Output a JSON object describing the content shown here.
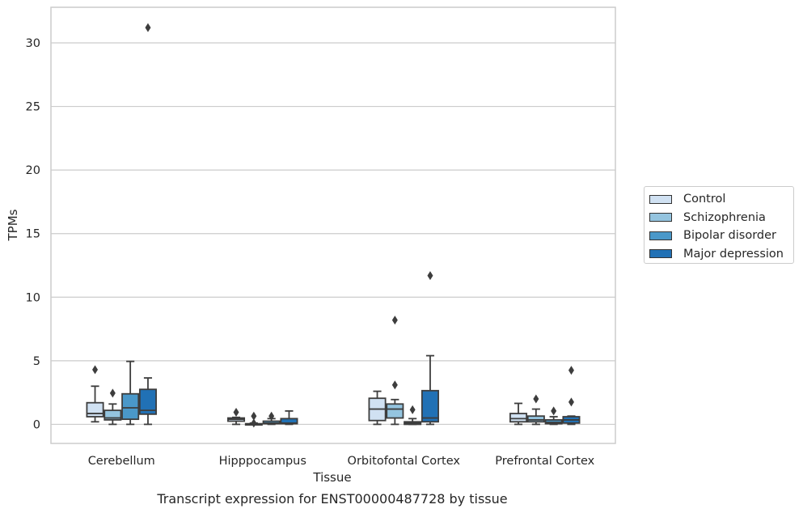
{
  "chart_data": {
    "type": "box",
    "title": "Transcript expression for ENST00000487728 by tissue",
    "xlabel": "Tissue",
    "ylabel": "TPMs",
    "ylim": [
      -1.5,
      32.8
    ],
    "yticks": [
      0,
      5,
      10,
      15,
      20,
      25,
      30
    ],
    "categories": [
      "Cerebellum",
      "Hipppocampus",
      "Orbitofontal Cortex",
      "Prefrontal Cortex"
    ],
    "grid": "horizontal",
    "legend_position": "right",
    "series": [
      {
        "name": "Control",
        "color": "#d0e1f2",
        "boxes": [
          {
            "whislo": 0.2,
            "q1": 0.6,
            "med": 0.85,
            "q3": 1.7,
            "whishi": 3.0,
            "fliers": [
              4.3
            ]
          },
          {
            "whislo": 0.0,
            "q1": 0.25,
            "med": 0.4,
            "q3": 0.5,
            "whishi": 0.55,
            "fliers": [
              0.95
            ]
          },
          {
            "whislo": 0.0,
            "q1": 0.3,
            "med": 1.2,
            "q3": 2.05,
            "whishi": 2.6,
            "fliers": []
          },
          {
            "whislo": 0.0,
            "q1": 0.2,
            "med": 0.45,
            "q3": 0.85,
            "whishi": 1.65,
            "fliers": []
          }
        ]
      },
      {
        "name": "Schizophrenia",
        "color": "#94c4df",
        "boxes": [
          {
            "whislo": 0.0,
            "q1": 0.35,
            "med": 0.5,
            "q3": 1.1,
            "whishi": 1.6,
            "fliers": [
              2.45
            ]
          },
          {
            "whislo": 0.0,
            "q1": 0.0,
            "med": 0.02,
            "q3": 0.05,
            "whishi": 0.1,
            "fliers": [
              0.1,
              0.65
            ]
          },
          {
            "whislo": 0.0,
            "q1": 0.5,
            "med": 1.2,
            "q3": 1.6,
            "whishi": 1.95,
            "fliers": [
              3.1,
              8.2
            ]
          },
          {
            "whislo": 0.0,
            "q1": 0.2,
            "med": 0.35,
            "q3": 0.65,
            "whishi": 1.2,
            "fliers": [
              2.0
            ]
          }
        ]
      },
      {
        "name": "Bipolar disorder",
        "color": "#4a98c9",
        "boxes": [
          {
            "whislo": 0.0,
            "q1": 0.4,
            "med": 1.3,
            "q3": 2.4,
            "whishi": 4.95,
            "fliers": []
          },
          {
            "whislo": 0.0,
            "q1": 0.05,
            "med": 0.1,
            "q3": 0.25,
            "whishi": 0.45,
            "fliers": [
              0.65
            ]
          },
          {
            "whislo": 0.0,
            "q1": 0.0,
            "med": 0.1,
            "q3": 0.2,
            "whishi": 0.45,
            "fliers": [
              1.15
            ]
          },
          {
            "whislo": 0.0,
            "q1": 0.05,
            "med": 0.15,
            "q3": 0.35,
            "whishi": 0.6,
            "fliers": [
              1.05
            ]
          }
        ]
      },
      {
        "name": "Major depression",
        "color": "#2171b5",
        "boxes": [
          {
            "whislo": 0.0,
            "q1": 0.8,
            "med": 1.1,
            "q3": 2.75,
            "whishi": 3.65,
            "fliers": [
              31.2
            ]
          },
          {
            "whislo": 0.0,
            "q1": 0.05,
            "med": 0.1,
            "q3": 0.45,
            "whishi": 1.05,
            "fliers": []
          },
          {
            "whislo": 0.0,
            "q1": 0.2,
            "med": 0.5,
            "q3": 2.65,
            "whishi": 5.4,
            "fliers": [
              11.7
            ]
          },
          {
            "whislo": 0.0,
            "q1": 0.1,
            "med": 0.35,
            "q3": 0.6,
            "whishi": 0.65,
            "fliers": [
              1.75,
              4.25
            ]
          }
        ]
      }
    ]
  }
}
